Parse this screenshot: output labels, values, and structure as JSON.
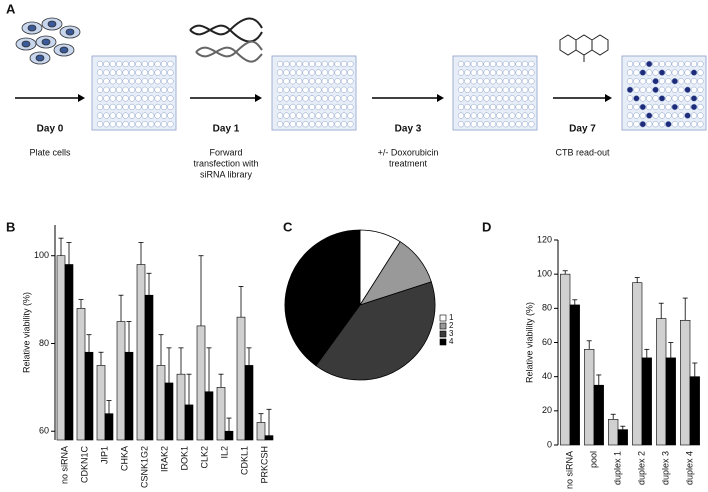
{
  "panel_a": {
    "label": "A",
    "steps": [
      {
        "day": "Day 0",
        "text": [
          "Plate cells"
        ]
      },
      {
        "day": "Day 1",
        "text": [
          "Forward",
          "transfection with",
          "siRNA library"
        ]
      },
      {
        "day": "Day 3",
        "text": [
          "+/- Doxorubicin",
          "treatment"
        ]
      },
      {
        "day": "Day 7",
        "text": [
          "CTB read-out"
        ]
      }
    ]
  },
  "chart_data": [
    {
      "type": "bar",
      "panel": "B",
      "y_label": "Relative viability (%)",
      "categories": [
        "no siRNA",
        "CDKN1C",
        "JIP1",
        "CHKA",
        "CSNK1G2",
        "IRAK2",
        "DOK1",
        "CLK2",
        "IL2",
        "CDKL1",
        "PRKCSH"
      ],
      "series": [
        {
          "color": "#d0d0d0",
          "values": [
            100,
            88,
            75,
            85,
            98,
            75,
            73,
            84,
            70,
            86,
            62
          ],
          "errors": [
            4,
            2,
            3,
            6,
            5,
            7,
            6,
            16,
            3,
            7,
            2
          ]
        },
        {
          "color": "#000000",
          "values": [
            98,
            78,
            64,
            78,
            91,
            71,
            66,
            69,
            60,
            75,
            59
          ],
          "errors": [
            5,
            4,
            3,
            7,
            5,
            8,
            7,
            10,
            3,
            4,
            6
          ]
        }
      ],
      "ylim": [
        58,
        107
      ],
      "yticks": [
        60,
        80,
        100
      ]
    },
    {
      "type": "pie",
      "panel": "C",
      "categories": [
        "1",
        "2",
        "3",
        "4"
      ],
      "values": [
        9,
        11,
        40,
        40
      ],
      "colors": [
        "#ffffff",
        "#999999",
        "#3a3a3a",
        "#000000"
      ]
    },
    {
      "type": "bar",
      "panel": "D",
      "y_label": "Relative viability (%)",
      "categories": [
        "no siRNA",
        "pool",
        "duplex 1",
        "duplex 2",
        "duplex 3",
        "duplex 4"
      ],
      "series": [
        {
          "color": "#d0d0d0",
          "values": [
            100,
            56,
            15,
            95,
            74,
            73
          ],
          "errors": [
            2,
            5,
            3,
            3,
            9,
            13
          ]
        },
        {
          "color": "#000000",
          "values": [
            82,
            35,
            9,
            51,
            51,
            40
          ],
          "errors": [
            3,
            6,
            2,
            5,
            9,
            8
          ]
        }
      ],
      "ylim": [
        0,
        120
      ],
      "yticks": [
        0,
        20,
        40,
        60,
        80,
        100,
        120
      ]
    }
  ]
}
